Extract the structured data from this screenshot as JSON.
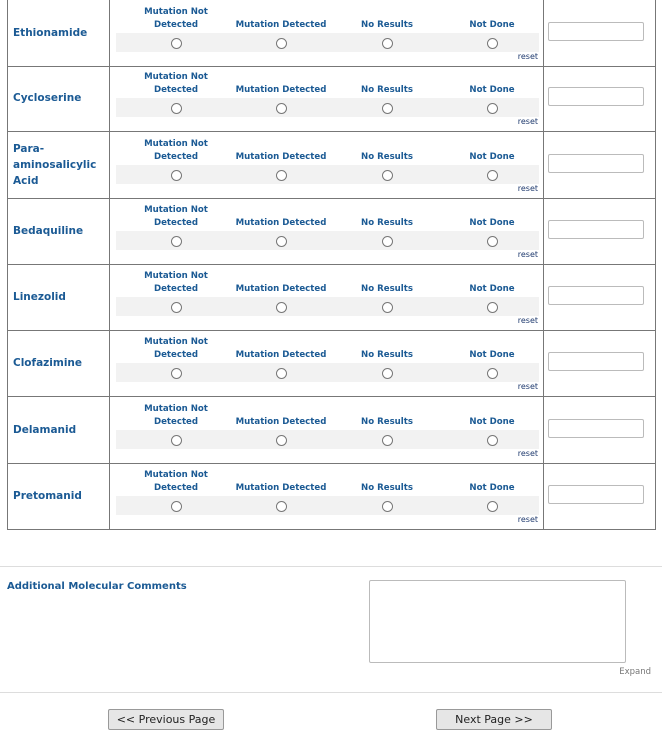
{
  "option_labels": [
    "Mutation Not Detected",
    "Mutation Detected",
    "No Results",
    "Not Done"
  ],
  "reset_label": "reset",
  "drugs": [
    {
      "name": "Ethionamide",
      "selected": null,
      "value": ""
    },
    {
      "name": "Cycloserine",
      "selected": null,
      "value": ""
    },
    {
      "name": "Para-aminosalicylic Acid",
      "selected": null,
      "value": ""
    },
    {
      "name": "Bedaquiline",
      "selected": null,
      "value": ""
    },
    {
      "name": "Linezolid",
      "selected": null,
      "value": ""
    },
    {
      "name": "Clofazimine",
      "selected": null,
      "value": ""
    },
    {
      "name": "Delamanid",
      "selected": null,
      "value": ""
    },
    {
      "name": "Pretomanid",
      "selected": null,
      "value": ""
    }
  ],
  "comments": {
    "label": "Additional Molecular Comments",
    "value": "",
    "expand_label": "Expand"
  },
  "nav": {
    "previous_label": "<< Previous Page",
    "next_label": "Next Page >>"
  }
}
